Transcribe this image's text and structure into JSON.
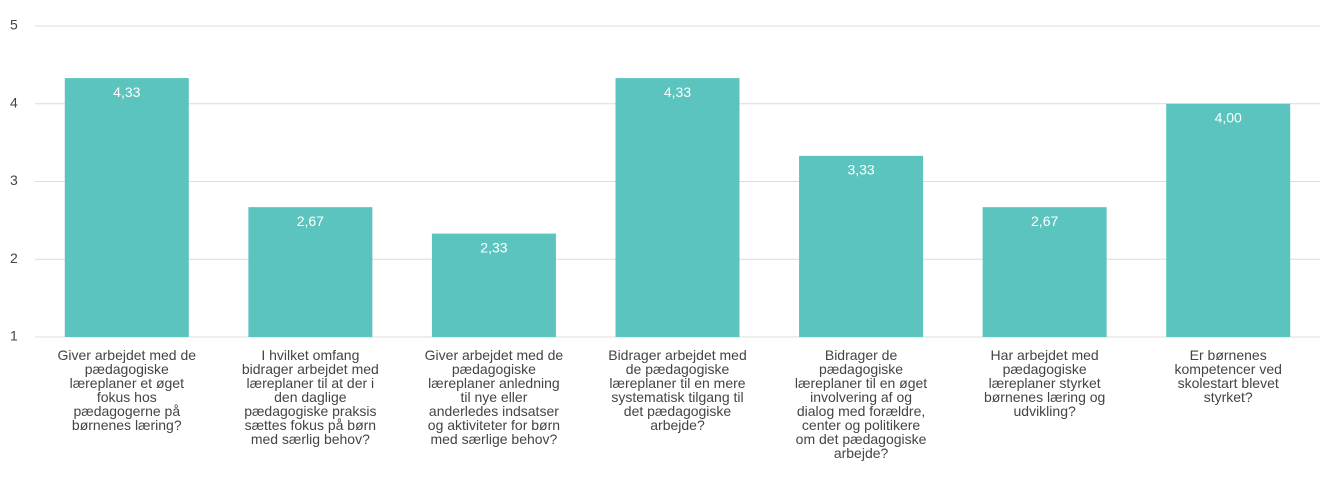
{
  "chart_data": {
    "type": "bar",
    "categories": [
      "Giver arbejdet med de pædagogiske læreplaner et øget fokus hos pædagogerne på børnenes læring?",
      "I hvilket omfang bidrager arbejdet med læreplaner til at der i den daglige pædagogiske praksis sættes fokus på børn med særlig behov?",
      "Giver arbejdet med de pædagogiske læreplaner anledning til nye eller anderledes indsatser og aktiviteter for børn med særlige behov?",
      "Bidrager arbejdet med de pædagogiske læreplaner til en mere systematisk tilgang til det pædagogiske arbejde?",
      "Bidrager de pædagogiske læreplaner til en øget involvering af og dialog med forældre, center og politikere om det pædagogiske arbejde?",
      "Har arbejdet med pædagogiske læreplaner styrket børnenes læring og udvikling?",
      "Er børnenes kompetencer ved skolestart blevet styrket?"
    ],
    "values": [
      4.33,
      2.67,
      2.33,
      4.33,
      3.33,
      2.67,
      4.0
    ],
    "value_labels": [
      "4,33",
      "2,67",
      "2,33",
      "4,33",
      "3,33",
      "2,67",
      "4,00"
    ],
    "color": "#5bc4bf",
    "ylim": [
      1,
      5
    ],
    "yticks": [
      1,
      2,
      3,
      4,
      5
    ],
    "grid": true
  }
}
